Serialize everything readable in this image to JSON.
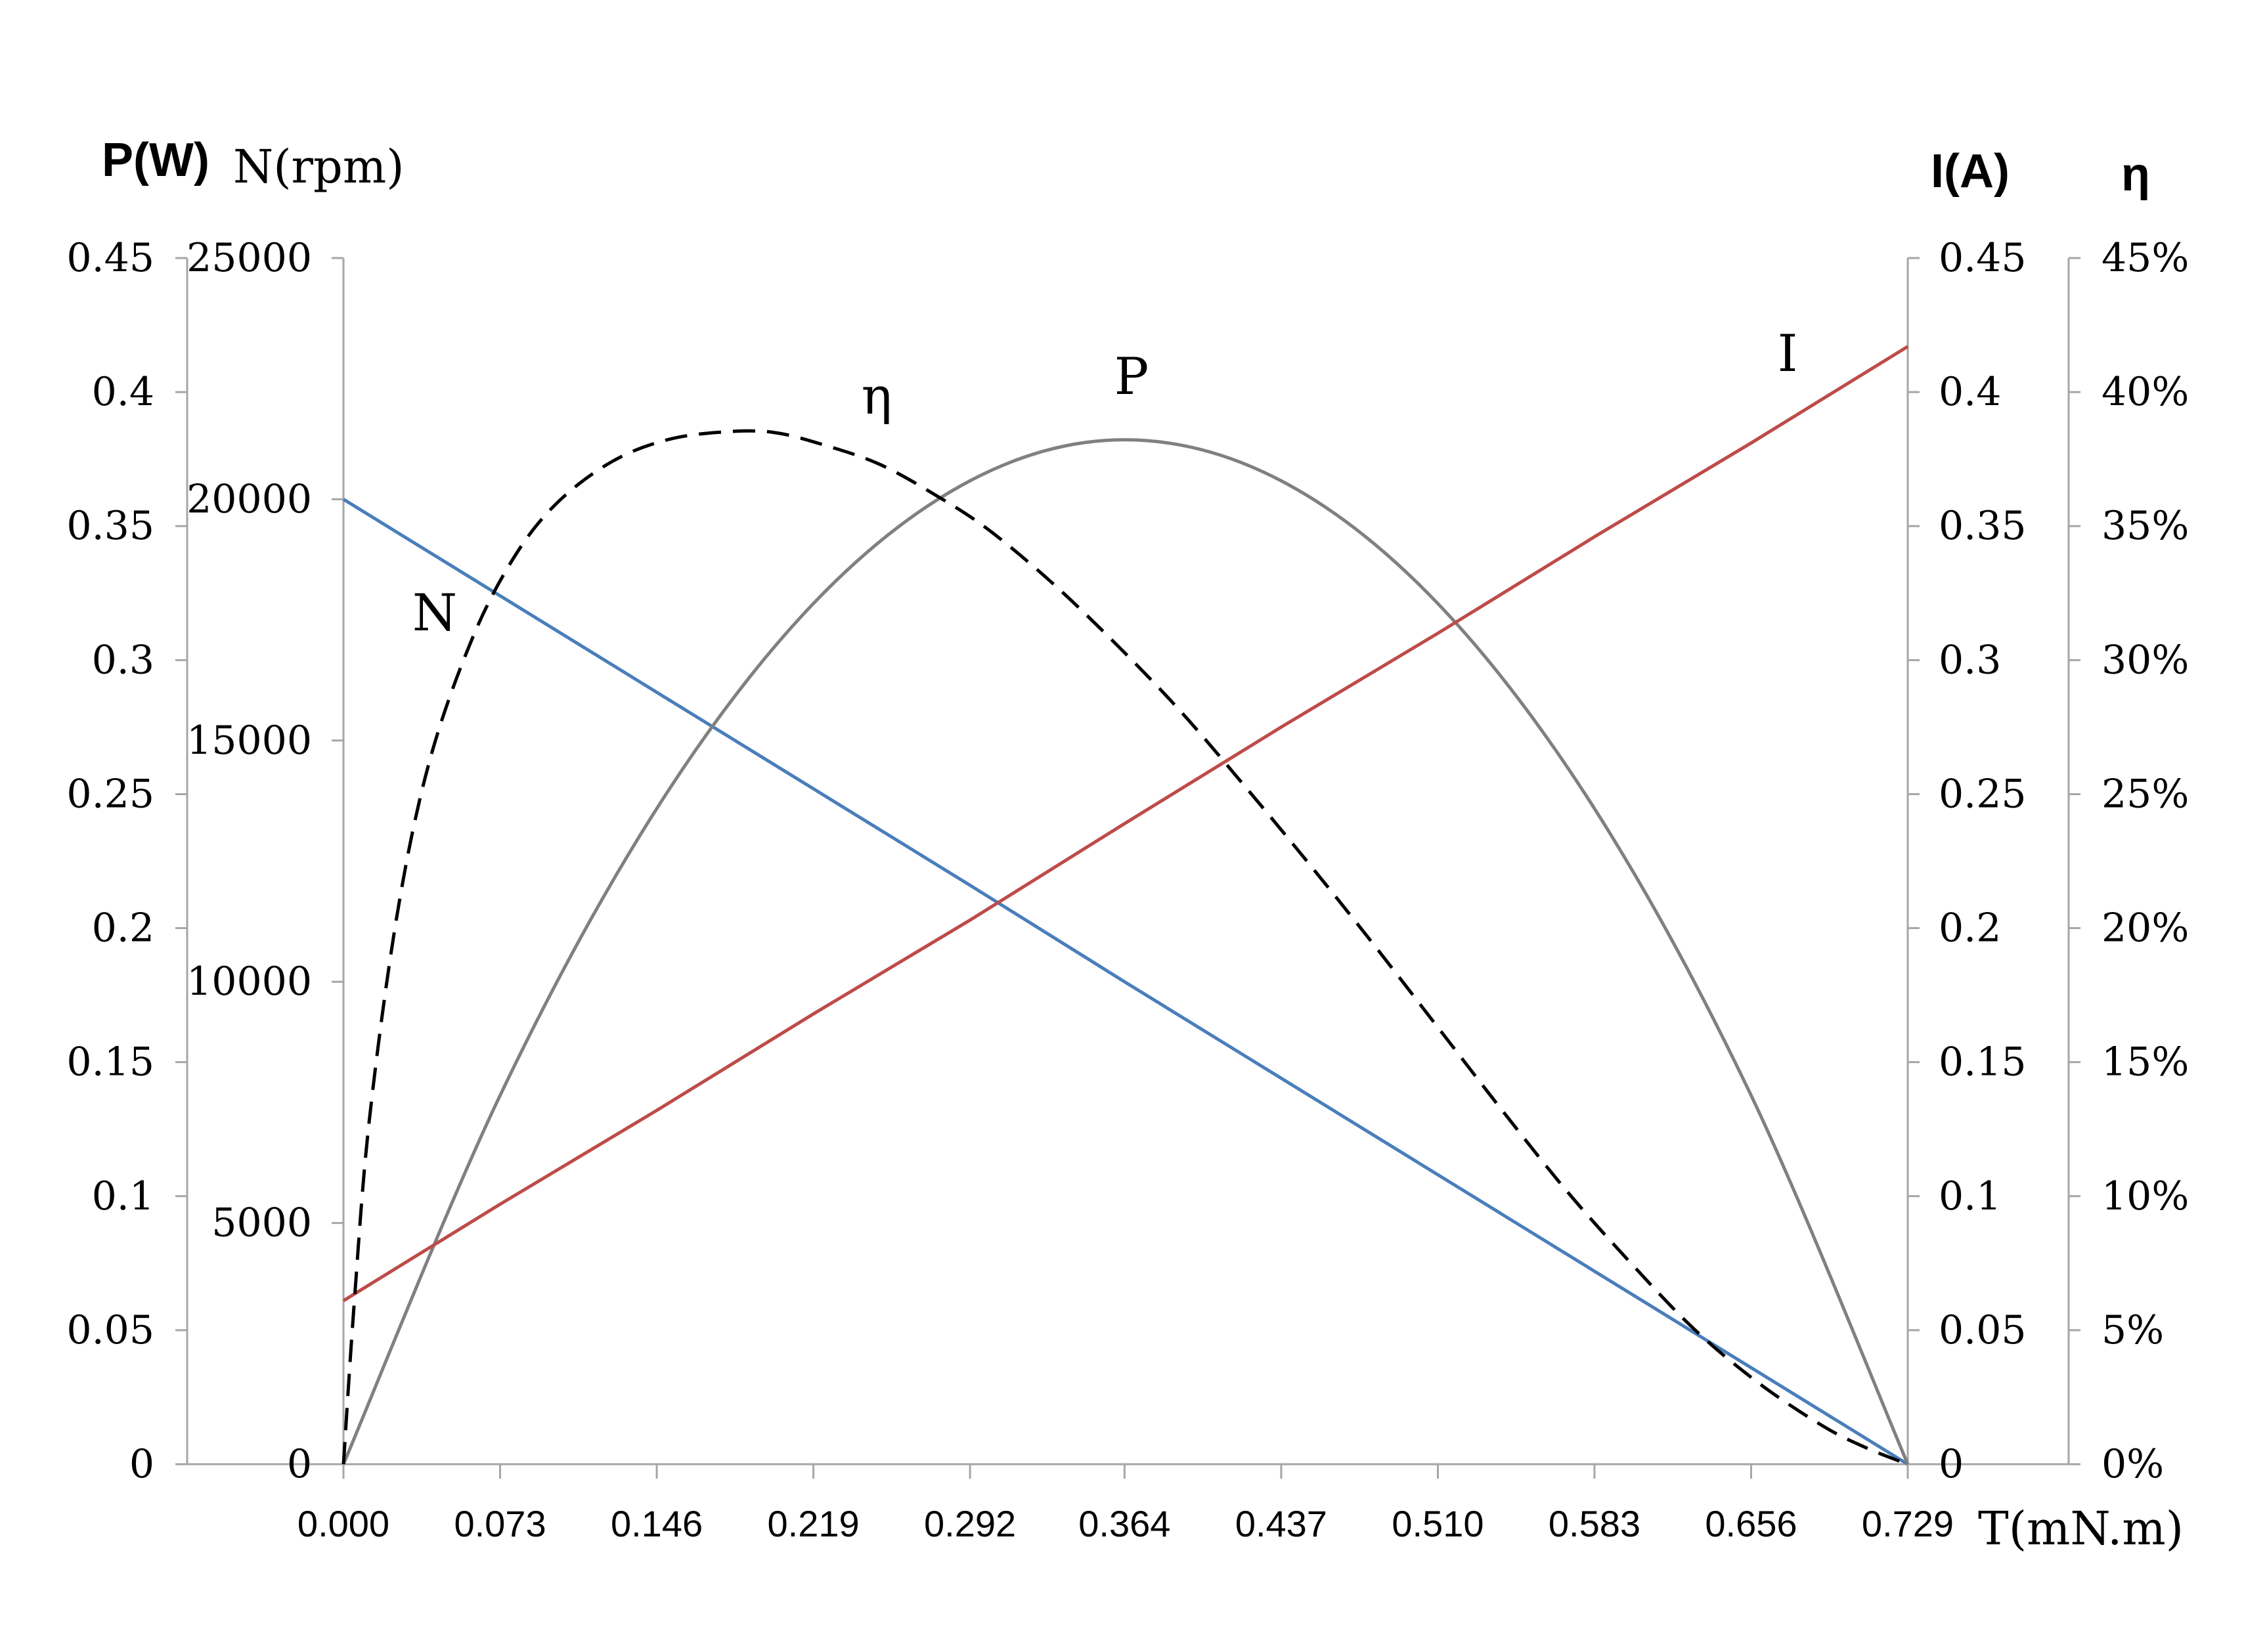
{
  "chart_data": {
    "type": "line",
    "title": "",
    "x": [
      0.0,
      0.073,
      0.146,
      0.219,
      0.292,
      0.364,
      0.437,
      0.51,
      0.583,
      0.656,
      0.729
    ],
    "x_tick_labels": [
      "0.000",
      "0.073",
      "0.146",
      "0.219",
      "0.292",
      "0.364",
      "0.437",
      "0.510",
      "0.583",
      "0.656",
      "0.729"
    ],
    "xlabel": "T(mN.m)",
    "xlim": [
      0,
      0.729
    ],
    "axes": {
      "power": {
        "label": "P(W)",
        "ylim": [
          0,
          0.45
        ],
        "ticks": [
          "0",
          "0.05",
          "0.1",
          "0.15",
          "0.2",
          "0.25",
          "0.3",
          "0.35",
          "0.4",
          "0.45"
        ]
      },
      "speed": {
        "label": "N(rpm)",
        "ylim": [
          0,
          25000
        ],
        "ticks": [
          "0",
          "5000",
          "10000",
          "15000",
          "20000",
          "25000"
        ]
      },
      "current": {
        "label": "I(A)",
        "ylim": [
          0,
          0.45
        ],
        "ticks": [
          "0",
          "0.05",
          "0.1",
          "0.15",
          "0.2",
          "0.25",
          "0.3",
          "0.35",
          "0.4",
          "0.45"
        ]
      },
      "efficiency": {
        "label": "η",
        "ylim": [
          0,
          45
        ],
        "ticks": [
          "0%",
          "5%",
          "10%",
          "15%",
          "20%",
          "25%",
          "30%",
          "35%",
          "40%",
          "45%"
        ]
      }
    },
    "series": [
      {
        "name": "N",
        "axis": "speed",
        "color": "#4a7ebb",
        "dash": false,
        "values": [
          20000,
          18000,
          16000,
          14000,
          12000,
          10000,
          8000,
          6000,
          4000,
          2000,
          0
        ]
      },
      {
        "name": "P",
        "axis": "power",
        "color": "#808080",
        "dash": false,
        "values": [
          0,
          0.1376,
          0.2446,
          0.3211,
          0.3669,
          0.3822,
          0.3669,
          0.3211,
          0.2446,
          0.1376,
          0
        ]
      },
      {
        "name": "I",
        "axis": "current",
        "color": "#be4b48",
        "dash": false,
        "values": [
          0.061,
          0.097,
          0.132,
          0.168,
          0.203,
          0.239,
          0.275,
          0.31,
          0.346,
          0.381,
          0.417
        ]
      },
      {
        "name": "η",
        "axis": "efficiency",
        "color": "#000000",
        "dash": true,
        "x": [
          0,
          0.005,
          0.012,
          0.025,
          0.04,
          0.06,
          0.08,
          0.1,
          0.125,
          0.15,
          0.175,
          0.2,
          0.225,
          0.25,
          0.275,
          0.3,
          0.33,
          0.36,
          0.39,
          0.42,
          0.45,
          0.48,
          0.51,
          0.54,
          0.57,
          0.6,
          0.63,
          0.66,
          0.69,
          0.71,
          0.729
        ],
        "values": [
          0,
          6.0,
          12.8,
          20.5,
          26.2,
          30.8,
          33.9,
          35.9,
          37.4,
          38.2,
          38.5,
          38.5,
          38.0,
          37.3,
          36.2,
          34.9,
          32.9,
          30.6,
          28.1,
          25.3,
          22.4,
          19.4,
          16.3,
          13.2,
          10.2,
          7.5,
          5.0,
          3.0,
          1.4,
          0.6,
          0
        ]
      }
    ],
    "annotations": [
      {
        "text": "N",
        "series": "N"
      },
      {
        "text": "η",
        "series": "η"
      },
      {
        "text": "P",
        "series": "P"
      },
      {
        "text": "I",
        "series": "I"
      }
    ],
    "grid": false,
    "legend": "none"
  }
}
